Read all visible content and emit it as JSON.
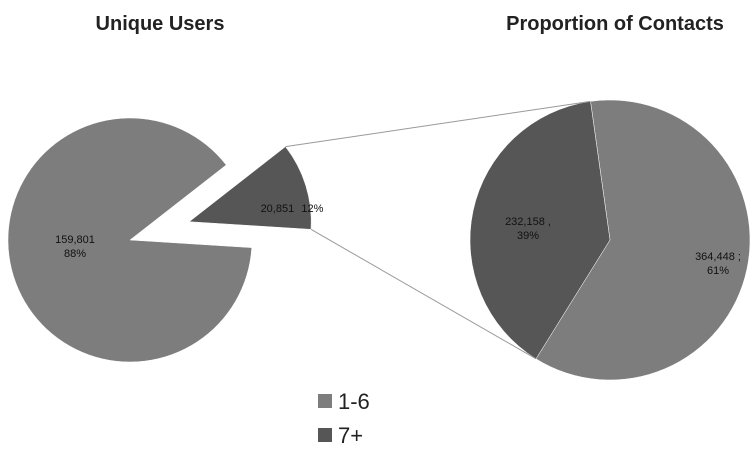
{
  "chart_data": [
    {
      "type": "pie",
      "title": "Unique Users",
      "categories": [
        "1-6",
        "7+"
      ],
      "values": [
        159801,
        20851
      ],
      "value_labels": [
        "159,801",
        "20,851"
      ],
      "percents": [
        88,
        12
      ],
      "percent_labels": [
        "88%",
        "12%"
      ],
      "colors": [
        "#7d7d7d",
        "#565656"
      ]
    },
    {
      "type": "pie",
      "title": "Proportion of Contacts",
      "categories": [
        "1-6",
        "7+"
      ],
      "values": [
        364448,
        232158
      ],
      "value_labels": [
        "364,448 ;",
        "232,158 ,"
      ],
      "percents": [
        61,
        39
      ],
      "percent_labels": [
        "61%",
        "39%"
      ],
      "colors": [
        "#7d7d7d",
        "#565656"
      ]
    }
  ]
}
